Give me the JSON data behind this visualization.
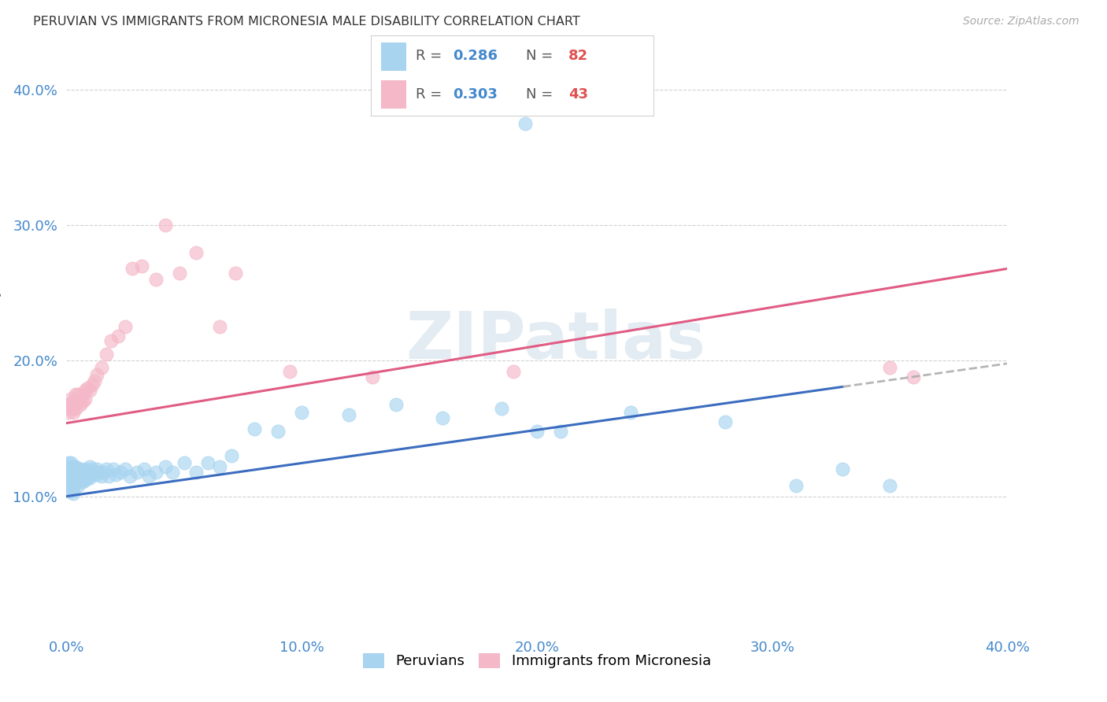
{
  "title": "PERUVIAN VS IMMIGRANTS FROM MICRONESIA MALE DISABILITY CORRELATION CHART",
  "source": "Source: ZipAtlas.com",
  "ylabel": "Male Disability",
  "xlim": [
    0.0,
    0.4
  ],
  "ylim": [
    0.0,
    0.43
  ],
  "x_ticks": [
    0.0,
    0.1,
    0.2,
    0.3,
    0.4
  ],
  "x_tick_labels": [
    "0.0%",
    "10.0%",
    "20.0%",
    "30.0%",
    "40.0%"
  ],
  "y_ticks": [
    0.1,
    0.2,
    0.3,
    0.4
  ],
  "y_tick_labels": [
    "10.0%",
    "20.0%",
    "30.0%",
    "40.0%"
  ],
  "legend_label1": "Peruvians",
  "legend_label2": "Immigrants from Micronesia",
  "color_blue": "#a8d4f0",
  "color_pink": "#f4b8c8",
  "line_color_blue": "#3b6cbf",
  "line_color_pink": "#e05c84",
  "line_color_dash": "#aaaaaa",
  "background_color": "#ffffff",
  "watermark": "ZIPatlas",
  "tick_color": "#4488cc",
  "title_color": "#333333",
  "source_color": "#aaaaaa",
  "ylabel_color": "#666666",
  "legend_r_color": "#4488cc",
  "legend_n_color": "#e05050",
  "legend_text_color": "#555555",
  "peru_x": [
    0.001,
    0.001,
    0.001,
    0.001,
    0.001,
    0.001,
    0.001,
    0.002,
    0.002,
    0.002,
    0.002,
    0.002,
    0.002,
    0.003,
    0.003,
    0.003,
    0.003,
    0.003,
    0.003,
    0.004,
    0.004,
    0.004,
    0.004,
    0.005,
    0.005,
    0.005,
    0.005,
    0.006,
    0.006,
    0.006,
    0.007,
    0.007,
    0.007,
    0.008,
    0.008,
    0.008,
    0.009,
    0.009,
    0.01,
    0.01,
    0.01,
    0.011,
    0.011,
    0.012,
    0.013,
    0.013,
    0.014,
    0.015,
    0.016,
    0.017,
    0.018,
    0.02,
    0.021,
    0.023,
    0.025,
    0.027,
    0.03,
    0.033,
    0.035,
    0.038,
    0.042,
    0.045,
    0.05,
    0.055,
    0.06,
    0.065,
    0.07,
    0.08,
    0.09,
    0.1,
    0.12,
    0.14,
    0.16,
    0.185,
    0.2,
    0.24,
    0.28,
    0.31,
    0.33,
    0.35,
    0.195,
    0.21
  ],
  "peru_y": [
    0.125,
    0.122,
    0.118,
    0.115,
    0.112,
    0.108,
    0.104,
    0.125,
    0.12,
    0.116,
    0.112,
    0.108,
    0.104,
    0.122,
    0.118,
    0.115,
    0.11,
    0.106,
    0.102,
    0.122,
    0.118,
    0.114,
    0.11,
    0.12,
    0.116,
    0.112,
    0.108,
    0.12,
    0.116,
    0.112,
    0.118,
    0.115,
    0.111,
    0.12,
    0.116,
    0.112,
    0.118,
    0.114,
    0.122,
    0.118,
    0.114,
    0.12,
    0.116,
    0.118,
    0.12,
    0.116,
    0.118,
    0.115,
    0.118,
    0.12,
    0.115,
    0.12,
    0.116,
    0.118,
    0.12,
    0.115,
    0.118,
    0.12,
    0.115,
    0.118,
    0.122,
    0.118,
    0.125,
    0.118,
    0.125,
    0.122,
    0.13,
    0.15,
    0.148,
    0.162,
    0.16,
    0.168,
    0.158,
    0.165,
    0.148,
    0.162,
    0.155,
    0.108,
    0.12,
    0.108,
    0.375,
    0.148
  ],
  "micro_x": [
    0.001,
    0.001,
    0.001,
    0.002,
    0.002,
    0.002,
    0.003,
    0.003,
    0.003,
    0.004,
    0.004,
    0.004,
    0.005,
    0.005,
    0.006,
    0.006,
    0.007,
    0.007,
    0.008,
    0.008,
    0.009,
    0.01,
    0.011,
    0.012,
    0.013,
    0.015,
    0.017,
    0.019,
    0.022,
    0.025,
    0.028,
    0.032,
    0.038,
    0.042,
    0.048,
    0.055,
    0.065,
    0.072,
    0.095,
    0.13,
    0.19,
    0.35,
    0.36
  ],
  "micro_y": [
    0.168,
    0.165,
    0.162,
    0.172,
    0.168,
    0.165,
    0.17,
    0.165,
    0.162,
    0.175,
    0.17,
    0.165,
    0.175,
    0.17,
    0.172,
    0.168,
    0.175,
    0.17,
    0.178,
    0.172,
    0.18,
    0.178,
    0.182,
    0.185,
    0.19,
    0.195,
    0.205,
    0.215,
    0.218,
    0.225,
    0.268,
    0.27,
    0.26,
    0.3,
    0.265,
    0.28,
    0.225,
    0.265,
    0.192,
    0.188,
    0.192,
    0.195,
    0.188
  ]
}
